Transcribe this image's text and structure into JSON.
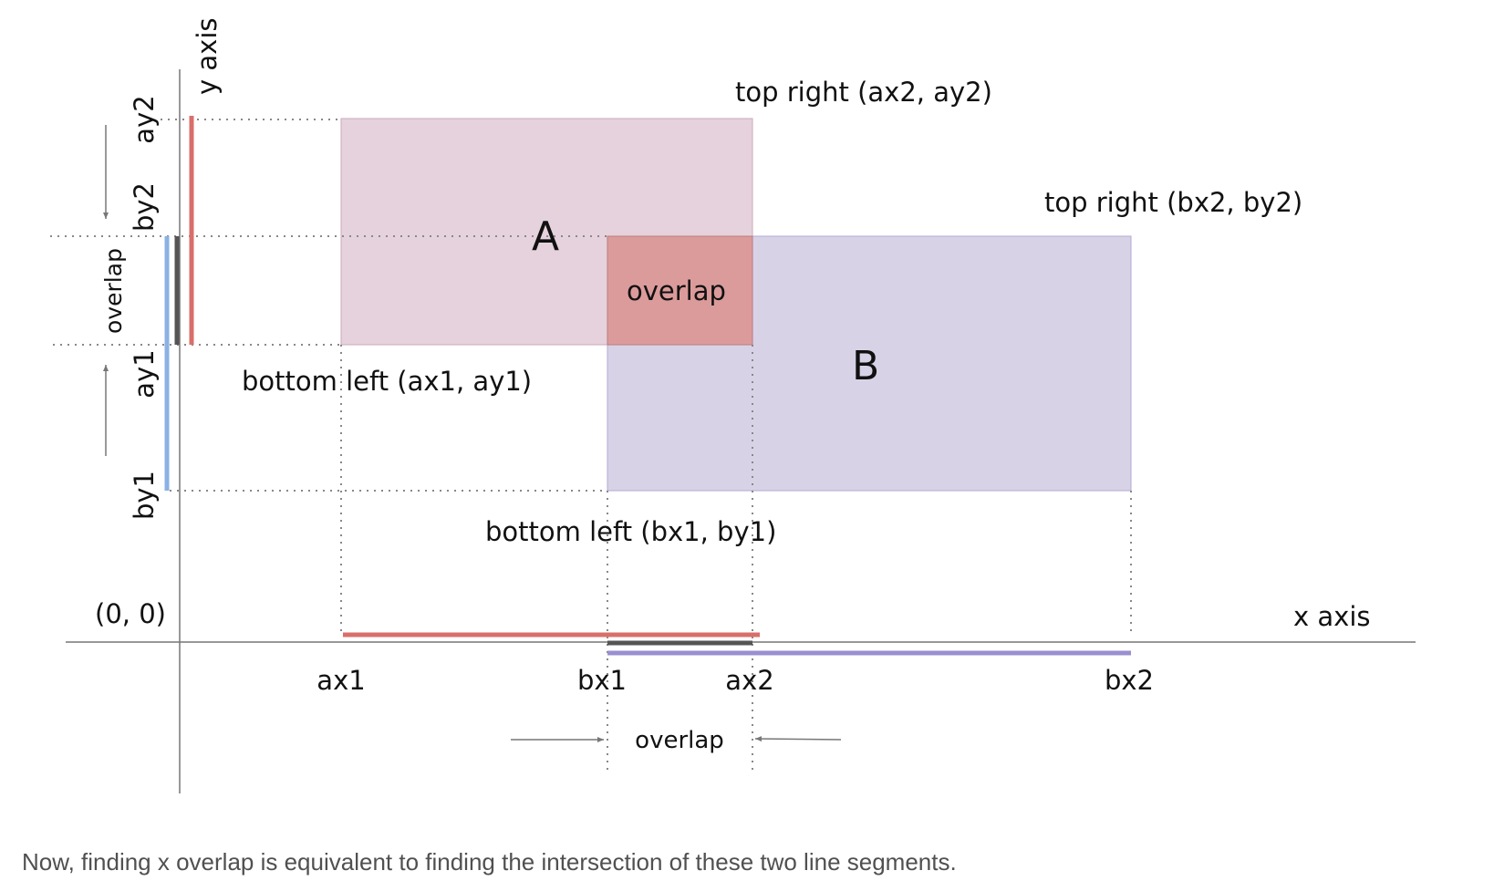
{
  "diagram": {
    "axes": {
      "x_label": "x axis",
      "y_label": "y axis",
      "origin_label": "(0, 0)"
    },
    "rectangles": [
      {
        "id": "A",
        "label": "A",
        "fill": "#e6d2dc",
        "stroke": "#c9a9b9",
        "corner_labels": {
          "top_right": "top right (ax2, ay2)",
          "bottom_left": "bottom left (ax1, ay1)"
        }
      },
      {
        "id": "B",
        "label": "B",
        "fill": "#d8d2e7",
        "stroke": "#b3a9d3",
        "corner_labels": {
          "top_right": "top right (bx2, by2)",
          "bottom_left": "bottom left (bx1, by1)"
        }
      }
    ],
    "overlap_region": {
      "label": "overlap",
      "fill": "#dc9b9b",
      "stroke": "#b87c7c"
    },
    "x_ticks": [
      "ax1",
      "bx1",
      "ax2",
      "bx2"
    ],
    "y_ticks": [
      "ay2",
      "by2",
      "ay1",
      "by1"
    ],
    "x_overlap_label": "overlap",
    "y_overlap_label": "overlap",
    "colors": {
      "a_segment": "#d96f6a",
      "b_segment_x": "#9a8fd0",
      "b_segment_y": "#8ab2e3",
      "overlap_segment": "#555555",
      "axis": "#777777",
      "guide": "#888888"
    }
  },
  "caption": "Now, finding x overlap is equivalent to finding the intersection of these two line segments."
}
